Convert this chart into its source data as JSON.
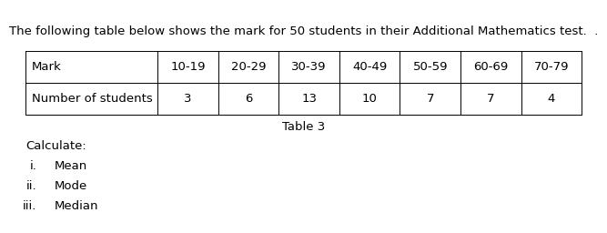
{
  "title": "The following table below shows the mark for 50 students in their Additional Mathematics test.  .",
  "table_caption": "Table 3",
  "col_header_row1": [
    "Mark",
    "10-19",
    "20-29",
    "30-39",
    "40-49",
    "50-59",
    "60-69",
    "70-79"
  ],
  "col_header_row2": [
    "Number of students",
    "3",
    "6",
    "13",
    "10",
    "7",
    "7",
    "4"
  ],
  "calculate_label": "Calculate:",
  "items_roman": [
    "i.",
    "ii.",
    "iii."
  ],
  "items_text": [
    "Mean",
    "Mode",
    "Median"
  ],
  "bg_color": "#ffffff",
  "text_color": "#000000",
  "font_size": 9.5,
  "fig_width": 6.31,
  "fig_height": 2.36
}
